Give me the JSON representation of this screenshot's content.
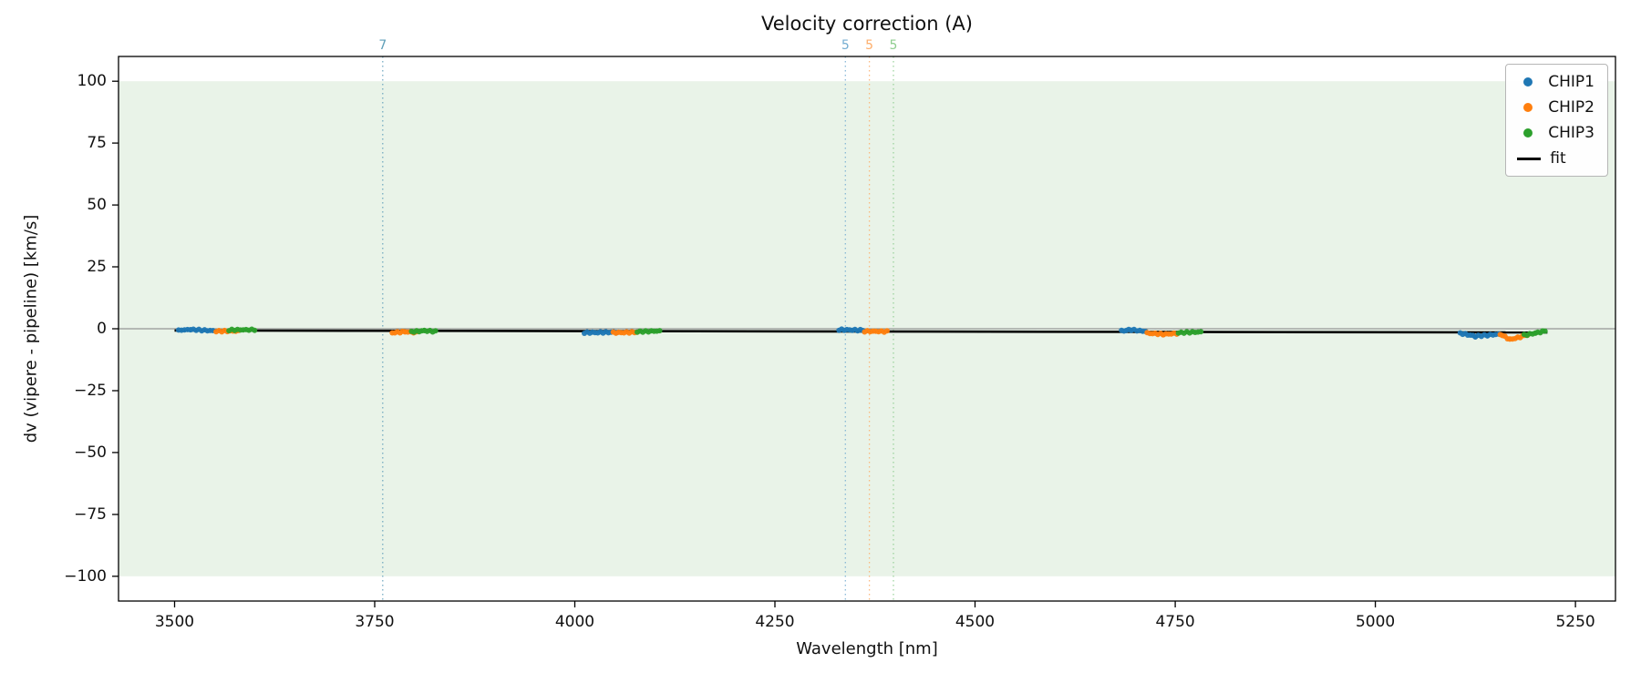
{
  "chart_data": {
    "type": "scatter",
    "title": "Velocity correction (A)",
    "xlabel": "Wavelength [nm]",
    "ylabel": "dv (vipere - pipeline) [km/s]",
    "xlim": [
      3430,
      5300
    ],
    "ylim": [
      -110,
      110
    ],
    "xticks": [
      3500,
      3750,
      4000,
      4250,
      4500,
      4750,
      5000,
      5250
    ],
    "yticks": [
      -100,
      -75,
      -50,
      -25,
      0,
      25,
      50,
      75,
      100
    ],
    "grid": false,
    "band": {
      "ymin": -100,
      "ymax": 100,
      "color": "#e9f3e8"
    },
    "zero_line": {
      "y": 0,
      "color": "#7f7f7f"
    },
    "fit_line": {
      "label": "fit",
      "color": "#000000",
      "x0": 3500,
      "y0": -0.7,
      "x1": 5215,
      "y1": -1.5
    },
    "vlines": [
      {
        "x": 3760,
        "label": "7",
        "color": "#5f9fb8"
      },
      {
        "x": 4338,
        "label": "5",
        "color": "#74add1"
      },
      {
        "x": 4368,
        "label": "5",
        "color": "#fdae6b"
      },
      {
        "x": 4398,
        "label": "5",
        "color": "#8fce8f"
      }
    ],
    "legend": {
      "position": "top-right",
      "entries": [
        "CHIP1",
        "CHIP2",
        "CHIP3",
        "fit"
      ]
    },
    "series": [
      {
        "name": "CHIP1",
        "color": "#1f77b4",
        "segments": [
          [
            [
              3505,
              -0.6
            ],
            [
              3520,
              -0.3
            ],
            [
              3548,
              -0.8
            ]
          ],
          [
            [
              4012,
              -1.6
            ],
            [
              4052,
              -1.4
            ]
          ],
          [
            [
              4330,
              -0.4
            ],
            [
              4360,
              -0.6
            ]
          ],
          [
            [
              4683,
              -0.9
            ],
            [
              4695,
              -0.4
            ],
            [
              4713,
              -1.1
            ]
          ],
          [
            [
              5106,
              -1.8
            ],
            [
              5125,
              -3.0
            ],
            [
              5140,
              -2.6
            ],
            [
              5154,
              -2.2
            ]
          ]
        ]
      },
      {
        "name": "CHIP2",
        "color": "#ff7f0e",
        "segments": [
          [
            [
              3552,
              -1.0
            ],
            [
              3580,
              -0.9
            ]
          ],
          [
            [
              3772,
              -1.6
            ],
            [
              3788,
              -1.2
            ],
            [
              3802,
              -1.5
            ]
          ],
          [
            [
              4048,
              -1.6
            ],
            [
              4078,
              -1.4
            ]
          ],
          [
            [
              4362,
              -1.0
            ],
            [
              4390,
              -1.1
            ]
          ],
          [
            [
              4715,
              -1.8
            ],
            [
              4735,
              -2.2
            ],
            [
              4752,
              -1.9
            ]
          ],
          [
            [
              5156,
              -2.2
            ],
            [
              5168,
              -4.3
            ],
            [
              5178,
              -3.6
            ],
            [
              5190,
              -2.4
            ]
          ]
        ]
      },
      {
        "name": "CHIP3",
        "color": "#2ca02c",
        "segments": [
          [
            [
              3568,
              -0.5
            ],
            [
              3600,
              -0.4
            ]
          ],
          [
            [
              3796,
              -1.2
            ],
            [
              3812,
              -0.8
            ],
            [
              3826,
              -1.1
            ]
          ],
          [
            [
              4078,
              -1.2
            ],
            [
              4106,
              -0.9
            ]
          ],
          [
            [
              4754,
              -1.6
            ],
            [
              4782,
              -1.3
            ]
          ],
          [
            [
              5186,
              -2.6
            ],
            [
              5200,
              -1.8
            ],
            [
              5212,
              -0.9
            ]
          ]
        ]
      }
    ]
  }
}
